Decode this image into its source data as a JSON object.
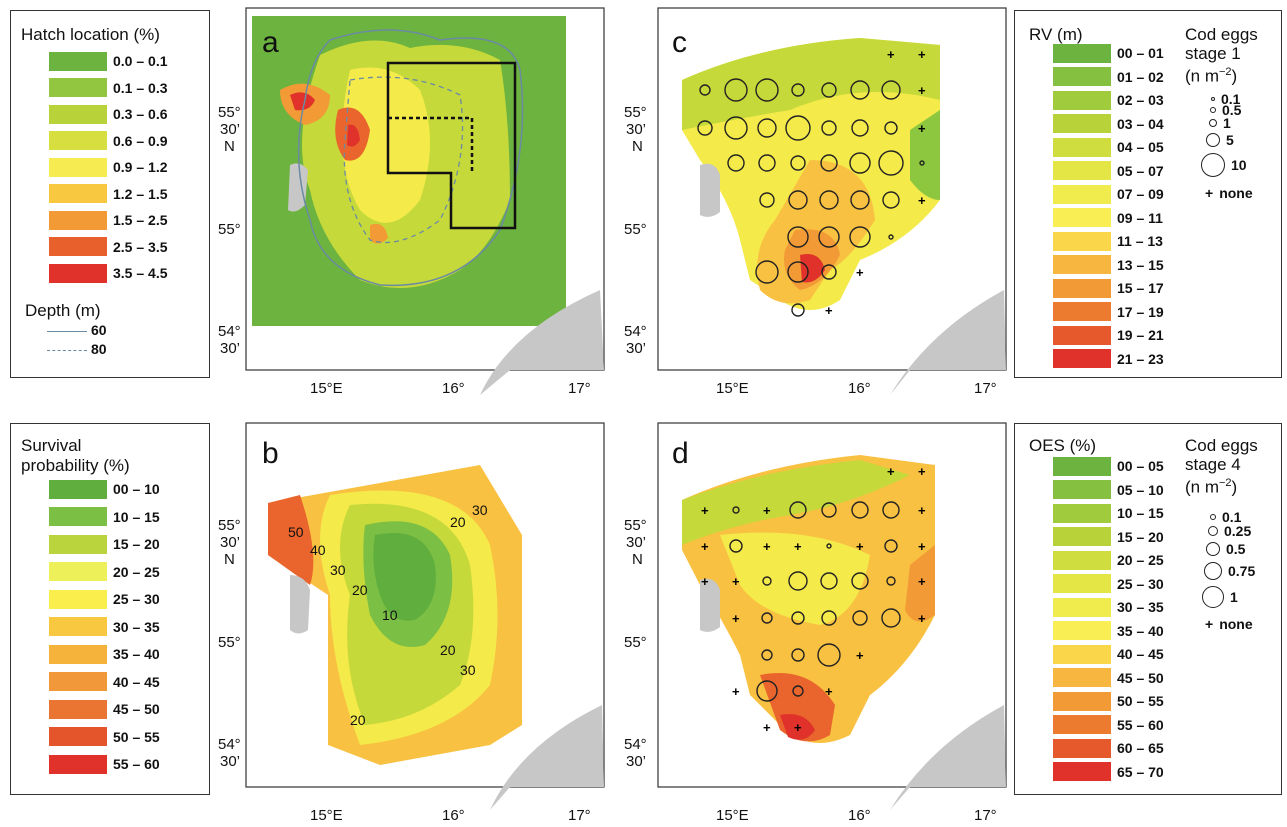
{
  "colors": {
    "green_dark": "#6db33f",
    "green": "#8dc63f",
    "yellow_green": "#c5d93a",
    "yellow": "#f4ea4a",
    "orange_light": "#f9c141",
    "orange": "#f29a35",
    "orange_red": "#e9652d",
    "red": "#e0322a",
    "land": "#c7c7c7"
  },
  "legend_hatch": {
    "title": "Hatch location (%)",
    "items": [
      "0.0 – 0.1",
      "0.1 – 0.3",
      "0.3 – 0.6",
      "0.6 – 0.9",
      "0.9 – 1.2",
      "1.2 – 1.5",
      "1.5 – 2.5",
      "2.5 – 3.5",
      "3.5 – 4.5"
    ],
    "item_colors": [
      "#6db33f",
      "#93c640",
      "#b8d33a",
      "#d6df3f",
      "#f6ec52",
      "#f7c840",
      "#f29a35",
      "#e8602c",
      "#e0322a"
    ],
    "depth_title": "Depth (m)",
    "depth_items": [
      "60",
      "80"
    ]
  },
  "legend_survival": {
    "title_line1": "Survival",
    "title_line2": "probability (%)",
    "items": [
      "00 – 10",
      "10 – 15",
      "15 – 20",
      "20 – 25",
      "25 – 30",
      "30 – 35",
      "35 – 40",
      "40 – 45",
      "45 – 50",
      "50 – 55",
      "55 – 60"
    ],
    "item_colors": [
      "#5fae3e",
      "#7cbf45",
      "#b9d43d",
      "#eef05a",
      "#faee4c",
      "#f8c841",
      "#f5b33c",
      "#f1993a",
      "#ea7431",
      "#e5552c",
      "#e0322a"
    ]
  },
  "legend_rv": {
    "title": "RV (m)",
    "items": [
      "00 – 01",
      "01 – 02",
      "02 – 03",
      "03 – 04",
      "04 – 05",
      "05 – 07",
      "07 – 09",
      "09 – 11",
      "11 – 13",
      "13 – 15",
      "15 – 17",
      "17 – 19",
      "19 – 21",
      "21 – 23"
    ],
    "item_colors": [
      "#6db33f",
      "#85c040",
      "#a0cb3c",
      "#b8d33a",
      "#cfdd3e",
      "#e3e645",
      "#f0ec4d",
      "#f9ef55",
      "#f9d64a",
      "#f6b63f",
      "#f29a35",
      "#ec7b30",
      "#e5592c",
      "#e0322a"
    ],
    "eggs_title_line1": "Cod eggs",
    "eggs_title_line2": "stage 1",
    "eggs_title_line3": "(n m",
    "eggs_title_sup": "−2",
    "eggs_title_end": ")",
    "egg_sizes": [
      "0.1",
      "0.5",
      "1",
      "5",
      "10"
    ],
    "none_label": "none"
  },
  "legend_oes": {
    "title": "OES (%)",
    "items": [
      "00 – 05",
      "05 – 10",
      "10 – 15",
      "15 – 20",
      "20 – 25",
      "25 – 30",
      "30 – 35",
      "35 – 40",
      "40 – 45",
      "45 – 50",
      "50 – 55",
      "55 – 60",
      "60 – 65",
      "65 – 70"
    ],
    "item_colors": [
      "#6db33f",
      "#85c040",
      "#a0cb3c",
      "#b8d33a",
      "#cfdd3e",
      "#e3e645",
      "#f0ec4d",
      "#f9ef55",
      "#f9d64a",
      "#f6b63f",
      "#f29a35",
      "#ec7b30",
      "#e5592c",
      "#e0322a"
    ],
    "eggs_title_line1": "Cod eggs",
    "eggs_title_line2": "stage 4",
    "eggs_title_line3": "(n m",
    "eggs_title_sup": "−2",
    "eggs_title_end": ")",
    "egg_sizes": [
      "0.1",
      "0.25",
      "0.5",
      "0.75",
      "1"
    ],
    "none_label": "none"
  },
  "panels": {
    "a": "a",
    "b": "b",
    "c": "c",
    "d": "d"
  },
  "axes": {
    "lat_55_30_deg": "55°",
    "lat_55_30_min": "30’",
    "lat_N": "N",
    "lat_55": "55°",
    "lat_54_30_deg": "54°",
    "lat_54_30_min": "30’",
    "lon_15": "15°E",
    "lon_16": "16°",
    "lon_17": "17°"
  },
  "contour_labels": [
    "50",
    "40",
    "30",
    "20",
    "10",
    "20",
    "30",
    "20",
    "30",
    "20"
  ]
}
